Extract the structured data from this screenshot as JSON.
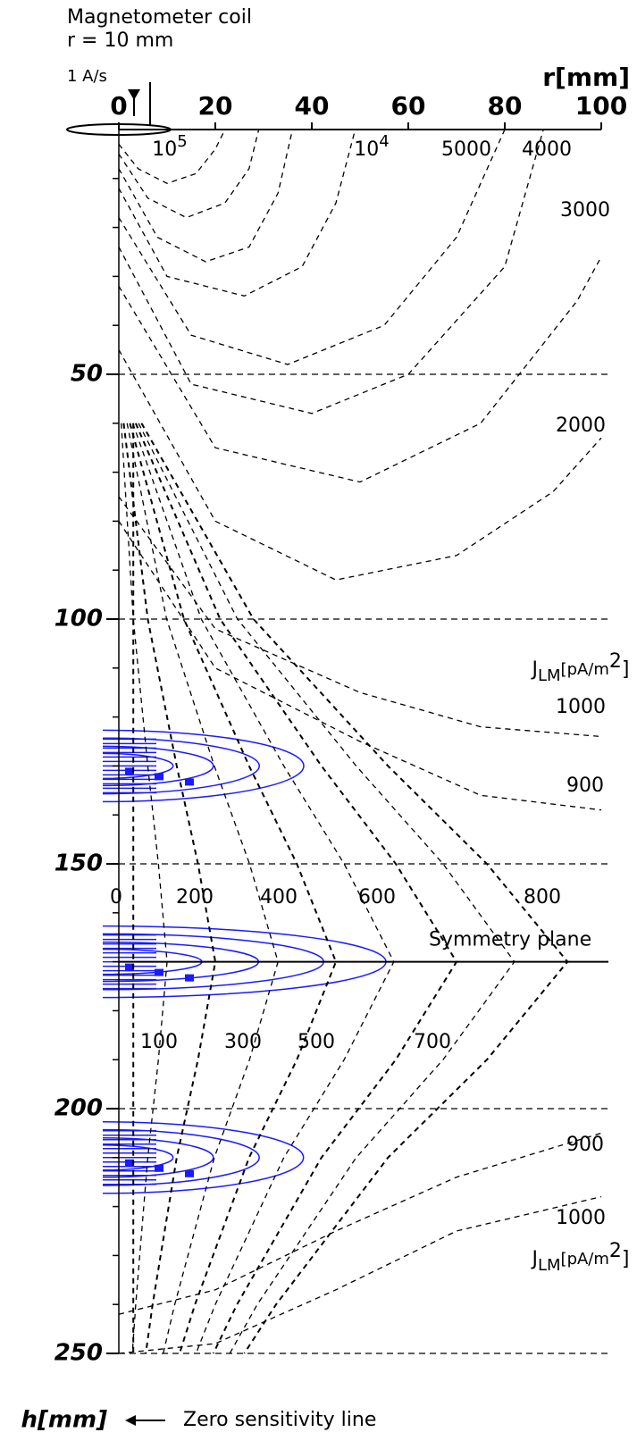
{
  "chart_data": {
    "type": "contour",
    "header": [
      "Magnetometer coil",
      "r = 10 mm",
      "1 A/s"
    ],
    "xlabel": "r[mm]",
    "ylabel": "h[mm]",
    "xlim": [
      0,
      100
    ],
    "ylim": [
      0,
      250
    ],
    "xticks": [
      0,
      20,
      40,
      60,
      80,
      100
    ],
    "yticks": [
      50,
      100,
      150,
      200,
      250
    ],
    "yticks_minor": [
      10,
      20,
      30,
      40,
      60,
      70,
      80,
      90,
      110,
      120,
      130,
      140,
      160,
      170,
      180,
      190,
      210,
      220,
      230,
      240
    ],
    "grid": true,
    "symmetry_plane": {
      "label": "Symmetry plane",
      "h": 170
    },
    "zero_line_label": "Zero sensitivity line",
    "unit_labels": [
      {
        "base": "J",
        "sub": "LM",
        "unit": "[pA/m",
        "sup": "2",
        "end": "]"
      },
      {
        "base": "J",
        "sub": "LM",
        "unit": "[pA/m",
        "sup": "2",
        "end": "]"
      }
    ],
    "contours": [
      {
        "label": {
          "base": "10",
          "sup": "5"
        },
        "r": [
          0,
          4,
          10,
          16,
          20,
          22
        ],
        "h": [
          3,
          8,
          11,
          9,
          4,
          0
        ]
      },
      {
        "label": null,
        "r": [
          0,
          6,
          14,
          22,
          27,
          29
        ],
        "h": [
          5,
          14,
          18,
          15,
          8,
          0
        ]
      },
      {
        "label": null,
        "r": [
          0,
          8,
          18,
          27,
          33,
          36
        ],
        "h": [
          8,
          22,
          27,
          24,
          13,
          0
        ]
      },
      {
        "label": {
          "base": "10",
          "sup": "4"
        },
        "r": [
          0,
          10,
          26,
          38,
          45,
          49
        ],
        "h": [
          12,
          30,
          34,
          28,
          15,
          0
        ]
      },
      {
        "label": "5000",
        "r": [
          0,
          15,
          35,
          55,
          70,
          80
        ],
        "h": [
          18,
          42,
          48,
          40,
          22,
          0
        ]
      },
      {
        "label": "4000",
        "r": [
          0,
          15,
          40,
          60,
          80,
          88
        ],
        "h": [
          24,
          52,
          58,
          50,
          28,
          0
        ]
      },
      {
        "label": "3000",
        "r": [
          0,
          20,
          50,
          75,
          95,
          100
        ],
        "h": [
          32,
          65,
          72,
          60,
          35,
          26
        ]
      },
      {
        "label": "2000",
        "r": [
          0,
          20,
          45,
          70,
          90,
          100
        ],
        "h": [
          45,
          80,
          92,
          87,
          74,
          63
        ]
      },
      {
        "label": "1000",
        "r": [
          0,
          20,
          50,
          75,
          100
        ],
        "h": [
          75,
          102,
          115,
          122,
          124
        ]
      },
      {
        "label": "900",
        "r": [
          0,
          20,
          50,
          75,
          100
        ],
        "h": [
          80,
          110,
          125,
          136,
          139
        ]
      },
      {
        "label": "0",
        "r": [
          3,
          3
        ],
        "h": [
          60,
          250
        ]
      },
      {
        "label": "100",
        "r": [
          0.5,
          3,
          6,
          8.2,
          10,
          8.2,
          6,
          3.5,
          2.8
        ],
        "h": [
          60,
          100,
          130,
          150,
          170,
          190,
          210,
          240,
          250
        ]
      },
      {
        "label": "200",
        "r": [
          1,
          6,
          12,
          16.4,
          20,
          16.4,
          12,
          7,
          5.6
        ],
        "h": [
          60,
          100,
          130,
          150,
          170,
          190,
          210,
          240,
          250
        ]
      },
      {
        "label": "300",
        "r": [
          1.7,
          9.9,
          19.8,
          27.1,
          33,
          27.1,
          19.8,
          11.6,
          9.2
        ],
        "h": [
          60,
          100,
          130,
          150,
          170,
          190,
          210,
          240,
          250
        ]
      },
      {
        "label": "400",
        "r": [
          2.3,
          13.5,
          27,
          36.9,
          45,
          36.9,
          27,
          15.8,
          12.6
        ],
        "h": [
          60,
          100,
          130,
          150,
          170,
          190,
          210,
          240,
          250
        ]
      },
      {
        "label": "500",
        "r": [
          2.9,
          17.1,
          34.2,
          46.7,
          57,
          46.7,
          34.2,
          20,
          16
        ],
        "h": [
          60,
          100,
          130,
          150,
          170,
          190,
          210,
          240,
          250
        ]
      },
      {
        "label": "600",
        "r": [
          3.5,
          21,
          42,
          57.4,
          70,
          57.4,
          42,
          24.5,
          19.6
        ],
        "h": [
          60,
          100,
          130,
          150,
          170,
          190,
          210,
          240,
          250
        ]
      },
      {
        "label": "700",
        "r": [
          4.1,
          24.6,
          49.2,
          67.2,
          82,
          67.2,
          49.2,
          28.7,
          23
        ],
        "h": [
          60,
          100,
          130,
          150,
          170,
          190,
          210,
          240,
          250
        ]
      },
      {
        "label": "800",
        "r": [
          4.7,
          27.9,
          55.8,
          76.3,
          93,
          76.3,
          55.8,
          32.6,
          26
        ],
        "h": [
          60,
          100,
          130,
          150,
          170,
          190,
          210,
          240,
          250
        ]
      },
      {
        "label": "900",
        "r": [
          0,
          20,
          45,
          70,
          100
        ],
        "h": [
          242,
          237,
          225,
          214,
          205
        ]
      },
      {
        "label": "1000",
        "r": [
          0,
          20,
          45,
          70,
          100
        ],
        "h": [
          250,
          248,
          237,
          225,
          218
        ]
      }
    ]
  }
}
